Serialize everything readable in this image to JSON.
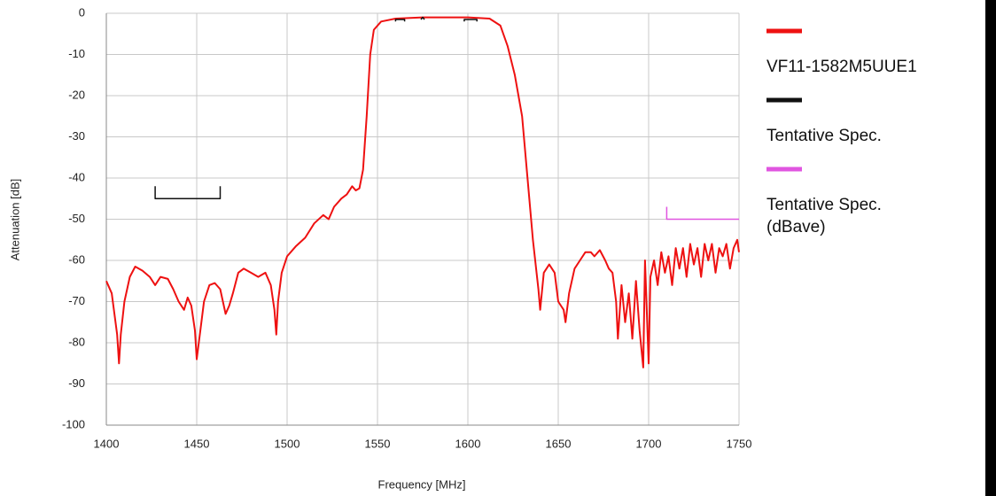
{
  "chart_data": {
    "type": "line",
    "xlabel": "Frequency [MHz]",
    "ylabel": "Attenuation  [dB]",
    "xlim": [
      1400,
      1750
    ],
    "xticks": [
      1400,
      1450,
      1500,
      1550,
      1600,
      1650,
      1700,
      1750
    ],
    "ylim": [
      -100,
      0
    ],
    "yticks": [
      0,
      -10,
      -20,
      -30,
      -40,
      -50,
      -60,
      -70,
      -80,
      -90,
      -100
    ],
    "grid": true,
    "legend": "right",
    "series": [
      {
        "name": "VF11-1582M5UUE1",
        "color": "#ee1111",
        "x": [
          1400,
          1403,
          1406,
          1407,
          1408,
          1410,
          1413,
          1416,
          1420,
          1424,
          1427,
          1430,
          1434,
          1437,
          1440,
          1443,
          1445,
          1447,
          1449,
          1450,
          1452,
          1454,
          1457,
          1460,
          1463,
          1466,
          1468,
          1470,
          1473,
          1476,
          1480,
          1484,
          1488,
          1491,
          1493,
          1494,
          1495,
          1497,
          1500,
          1505,
          1510,
          1515,
          1520,
          1523,
          1526,
          1530,
          1533,
          1536,
          1538,
          1540,
          1542,
          1544,
          1546,
          1548,
          1552,
          1560,
          1575,
          1600,
          1612,
          1618,
          1622,
          1626,
          1630,
          1633,
          1636,
          1639,
          1640,
          1642,
          1645,
          1648,
          1650,
          1653,
          1654,
          1656,
          1659,
          1662,
          1665,
          1668,
          1670,
          1673,
          1676,
          1678,
          1680,
          1682,
          1683,
          1685,
          1687,
          1689,
          1691,
          1693,
          1695,
          1697,
          1698,
          1700,
          1701,
          1703,
          1705,
          1707,
          1709,
          1711,
          1713,
          1715,
          1717,
          1719,
          1721,
          1723,
          1725,
          1727,
          1729,
          1731,
          1733,
          1735,
          1737,
          1739,
          1741,
          1743,
          1745,
          1747,
          1749,
          1750
        ],
        "values": [
          -65,
          -68,
          -78,
          -85,
          -78,
          -70,
          -64,
          -61.5,
          -62.5,
          -64,
          -66,
          -64,
          -64.5,
          -67,
          -70,
          -72,
          -69,
          -71,
          -77,
          -84,
          -77,
          -70,
          -66,
          -65.5,
          -67,
          -73,
          -71,
          -68,
          -63,
          -62,
          -63,
          -64,
          -63,
          -66,
          -72,
          -78,
          -70,
          -63,
          -59,
          -56.5,
          -54.5,
          -51,
          -49,
          -50,
          -47,
          -45,
          -44,
          -42,
          -43,
          -42.5,
          -38,
          -25,
          -10,
          -4,
          -2,
          -1.3,
          -1,
          -1,
          -1.3,
          -3,
          -8,
          -15,
          -25,
          -40,
          -55,
          -67,
          -72,
          -63,
          -61,
          -63,
          -70,
          -72,
          -75,
          -68,
          -62,
          -60,
          -58,
          -58,
          -59,
          -57.5,
          -60,
          -62,
          -63,
          -70,
          -79,
          -66,
          -75,
          -68,
          -79,
          -65,
          -77,
          -86,
          -60,
          -85,
          -64,
          -60,
          -66,
          -58,
          -63,
          -59,
          -66,
          -57,
          -62,
          -57,
          -64,
          -56,
          -61,
          -57,
          -64,
          -56,
          -60,
          -56,
          -63,
          -57,
          -59,
          -56,
          -62,
          -57,
          -55,
          -58
        ]
      },
      {
        "name": "Tentative Spec.",
        "color": "#111111",
        "x": [
          1427,
          1427,
          1463,
          1463,
          1463,
          1560,
          1560,
          1565,
          1565,
          1565,
          1574,
          1575,
          1576,
          1576,
          1598,
          1598,
          1605,
          1605
        ],
        "values": [
          -42,
          -45,
          -45,
          -42,
          null,
          -2,
          -1.5,
          -1.5,
          -2,
          null,
          -1.5,
          -1,
          -1.5,
          null,
          -2,
          -1.5,
          -1.5,
          -2
        ]
      },
      {
        "name": "Tentative Spec.\n(dBave)",
        "color": "#e055e0",
        "x": [
          1710,
          1710,
          1750
        ],
        "values": [
          -47,
          -50,
          -50
        ]
      }
    ]
  }
}
